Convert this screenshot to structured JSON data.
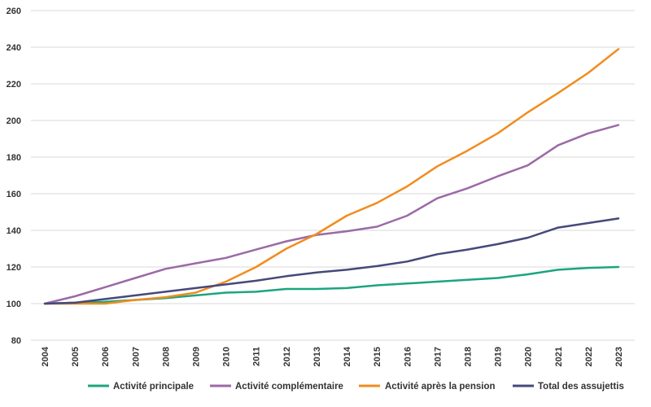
{
  "chart_data": {
    "type": "line",
    "title": "",
    "xlabel": "",
    "ylabel": "",
    "x": [
      "2004",
      "2005",
      "2006",
      "2007",
      "2008",
      "2009",
      "2010",
      "2011",
      "2012",
      "2013",
      "2014",
      "2015",
      "2016",
      "2017",
      "2018",
      "2019",
      "2020",
      "2021",
      "2022",
      "2023"
    ],
    "yticks": [
      80,
      100,
      120,
      140,
      160,
      180,
      200,
      220,
      240,
      260
    ],
    "ylim": [
      80,
      260
    ],
    "grid": "horizontal",
    "legend_position": "bottom",
    "series": [
      {
        "name": "Activité principale",
        "color": "#1BA57E",
        "values": [
          100,
          100.5,
          101,
          102,
          103,
          104.5,
          106,
          106.5,
          108,
          108,
          108.5,
          110,
          111,
          112,
          113,
          114,
          116,
          118.5,
          119.5,
          120
        ]
      },
      {
        "name": "Activité complémentaire",
        "color": "#9B6AA6",
        "values": [
          100,
          104,
          109,
          114,
          119,
          122,
          125,
          129.5,
          134,
          137.5,
          139.5,
          142,
          148,
          157.5,
          163,
          169.5,
          175.5,
          186.5,
          193,
          197.5
        ]
      },
      {
        "name": "Activité après la pension",
        "color": "#F28C1E",
        "values": [
          100,
          100,
          100,
          102,
          103.5,
          106,
          112,
          120,
          130,
          138,
          148,
          155,
          164,
          175,
          183.5,
          193,
          204.5,
          215,
          226,
          239
        ]
      },
      {
        "name": "Total des assujettis",
        "color": "#45497A",
        "values": [
          100,
          100.5,
          102.5,
          104.5,
          106.5,
          108.5,
          110.5,
          112.5,
          115,
          117,
          118.5,
          120.5,
          123,
          127,
          129.5,
          132.5,
          136,
          141.5,
          144,
          146.5
        ]
      }
    ]
  }
}
